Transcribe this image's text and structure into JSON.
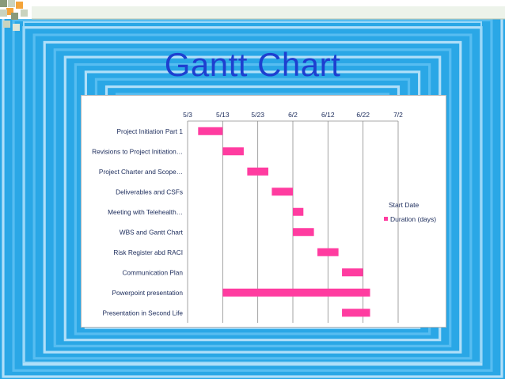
{
  "slide": {
    "title": "Gantt Chart",
    "colors": {
      "background": "#2aa7e6",
      "frame_light": "#bfe6fb",
      "title": "#1e3fd0",
      "bar": "#ff3ca0"
    }
  },
  "chart_data": {
    "type": "bar",
    "orientation": "horizontal-stacked-gantt",
    "title": "",
    "xlabel": "",
    "ylabel": "",
    "x_ticks": [
      "5/3",
      "5/13",
      "5/23",
      "6/2",
      "6/12",
      "6/22",
      "7/2"
    ],
    "categories": [
      "Project Initiation Part 1",
      "Revisions to Project Initiation…",
      "Project Charter and Scope…",
      "Deliverables and CSFs",
      "Meeting with Telehealth…",
      "WBS and Gantt Chart",
      "Risk Register abd RACI",
      "Communication Plan",
      "Powerpoint presentation",
      "Presentation in Second Life"
    ],
    "series": [
      {
        "name": "Start Date",
        "values": [
          "5/6",
          "5/13",
          "5/20",
          "5/27",
          "6/2",
          "6/2",
          "6/9",
          "6/16",
          "5/13",
          "6/16"
        ],
        "color": "none"
      },
      {
        "name": "Duration (days)",
        "values": [
          7,
          6,
          6,
          6,
          3,
          6,
          6,
          6,
          42,
          8
        ],
        "color": "#ff3ca0"
      }
    ],
    "grid": "vertical",
    "legend_position": "right"
  }
}
